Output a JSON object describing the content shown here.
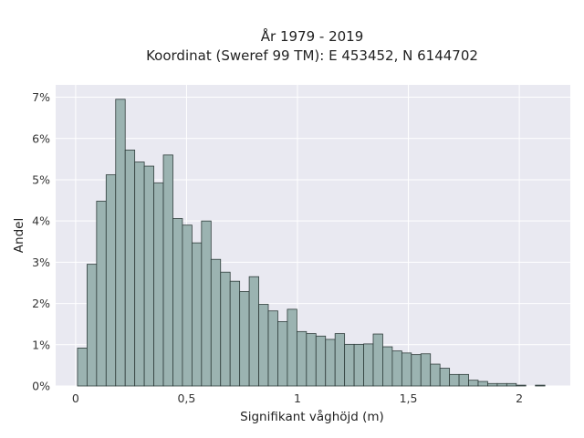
{
  "chart_data": {
    "type": "bar",
    "title_line1": "År 1979 - 2019",
    "title_line2": "Koordinat (Sweref 99 TM): E 453452, N 6144702",
    "xlabel": "Signifikant våghöjd (m)",
    "ylabel": "Andel",
    "xlim": [
      -0.09,
      2.23
    ],
    "ylim": [
      0,
      7.3
    ],
    "y_unit": "percent",
    "x_ticks": [
      {
        "value": 0,
        "label": "0"
      },
      {
        "value": 0.5,
        "label": "0,5"
      },
      {
        "value": 1,
        "label": "1"
      },
      {
        "value": 1.5,
        "label": "1,5"
      },
      {
        "value": 2,
        "label": "2"
      }
    ],
    "y_ticks": [
      {
        "value": 0,
        "label": "0%"
      },
      {
        "value": 1,
        "label": "1%"
      },
      {
        "value": 2,
        "label": "2%"
      },
      {
        "value": 3,
        "label": "3%"
      },
      {
        "value": 4,
        "label": "4%"
      },
      {
        "value": 5,
        "label": "5%"
      },
      {
        "value": 6,
        "label": "6%"
      },
      {
        "value": 7,
        "label": "7%"
      }
    ],
    "grid": true,
    "bin_width": 0.043,
    "x": [
      0.03,
      0.073,
      0.116,
      0.159,
      0.202,
      0.245,
      0.288,
      0.331,
      0.374,
      0.417,
      0.46,
      0.503,
      0.546,
      0.589,
      0.632,
      0.675,
      0.718,
      0.761,
      0.804,
      0.847,
      0.89,
      0.933,
      0.976,
      1.019,
      1.062,
      1.105,
      1.148,
      1.191,
      1.234,
      1.277,
      1.32,
      1.363,
      1.406,
      1.449,
      1.492,
      1.535,
      1.578,
      1.621,
      1.664,
      1.707,
      1.75,
      1.793,
      1.836,
      1.879,
      1.922,
      1.965,
      2.008,
      2.051,
      2.094
    ],
    "values": [
      0.92,
      2.95,
      4.48,
      5.12,
      6.95,
      5.72,
      5.43,
      5.33,
      4.92,
      5.6,
      4.06,
      3.9,
      3.47,
      4.0,
      3.07,
      2.76,
      2.54,
      2.29,
      2.65,
      1.98,
      1.82,
      1.56,
      1.86,
      1.32,
      1.27,
      1.21,
      1.13,
      1.27,
      1.01,
      1.01,
      1.02,
      1.26,
      0.95,
      0.85,
      0.8,
      0.76,
      0.78,
      0.53,
      0.43,
      0.28,
      0.28,
      0.14,
      0.11,
      0.06,
      0.06,
      0.06,
      0.02,
      0.0,
      0.02
    ],
    "colors": {
      "bar_fill": "#9bb3b1",
      "bar_edge": "#2f3d3b",
      "plot_background": "#e9e9f1",
      "grid": "#ffffff"
    }
  }
}
